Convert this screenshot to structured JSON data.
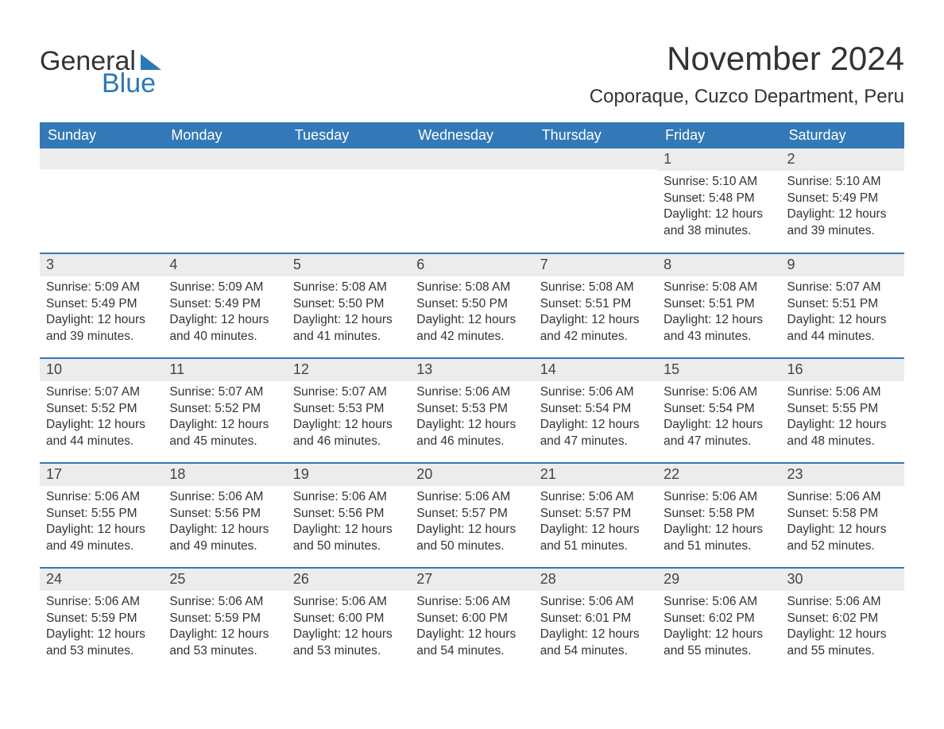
{
  "logo": {
    "word1": "General",
    "word2": "Blue"
  },
  "title": "November 2024",
  "location": "Coporaque, Cuzco Department, Peru",
  "colors": {
    "header_bg": "#3379b7",
    "header_text": "#ffffff",
    "row_border": "#3379b7",
    "daynum_bg": "#ececec",
    "body_text": "#333333",
    "logo_blue": "#2b78b8",
    "page_bg": "#ffffff"
  },
  "typography": {
    "title_fontsize": 42,
    "location_fontsize": 24,
    "dayhdr_fontsize": 18,
    "body_fontsize": 15.5
  },
  "day_headers": [
    "Sunday",
    "Monday",
    "Tuesday",
    "Wednesday",
    "Thursday",
    "Friday",
    "Saturday"
  ],
  "labels": {
    "sunrise": "Sunrise:",
    "sunset": "Sunset:",
    "daylight": "Daylight:"
  },
  "weeks": [
    [
      null,
      null,
      null,
      null,
      null,
      {
        "n": 1,
        "sunrise": "5:10 AM",
        "sunset": "5:48 PM",
        "daylight": "12 hours and 38 minutes."
      },
      {
        "n": 2,
        "sunrise": "5:10 AM",
        "sunset": "5:49 PM",
        "daylight": "12 hours and 39 minutes."
      }
    ],
    [
      {
        "n": 3,
        "sunrise": "5:09 AM",
        "sunset": "5:49 PM",
        "daylight": "12 hours and 39 minutes."
      },
      {
        "n": 4,
        "sunrise": "5:09 AM",
        "sunset": "5:49 PM",
        "daylight": "12 hours and 40 minutes."
      },
      {
        "n": 5,
        "sunrise": "5:08 AM",
        "sunset": "5:50 PM",
        "daylight": "12 hours and 41 minutes."
      },
      {
        "n": 6,
        "sunrise": "5:08 AM",
        "sunset": "5:50 PM",
        "daylight": "12 hours and 42 minutes."
      },
      {
        "n": 7,
        "sunrise": "5:08 AM",
        "sunset": "5:51 PM",
        "daylight": "12 hours and 42 minutes."
      },
      {
        "n": 8,
        "sunrise": "5:08 AM",
        "sunset": "5:51 PM",
        "daylight": "12 hours and 43 minutes."
      },
      {
        "n": 9,
        "sunrise": "5:07 AM",
        "sunset": "5:51 PM",
        "daylight": "12 hours and 44 minutes."
      }
    ],
    [
      {
        "n": 10,
        "sunrise": "5:07 AM",
        "sunset": "5:52 PM",
        "daylight": "12 hours and 44 minutes."
      },
      {
        "n": 11,
        "sunrise": "5:07 AM",
        "sunset": "5:52 PM",
        "daylight": "12 hours and 45 minutes."
      },
      {
        "n": 12,
        "sunrise": "5:07 AM",
        "sunset": "5:53 PM",
        "daylight": "12 hours and 46 minutes."
      },
      {
        "n": 13,
        "sunrise": "5:06 AM",
        "sunset": "5:53 PM",
        "daylight": "12 hours and 46 minutes."
      },
      {
        "n": 14,
        "sunrise": "5:06 AM",
        "sunset": "5:54 PM",
        "daylight": "12 hours and 47 minutes."
      },
      {
        "n": 15,
        "sunrise": "5:06 AM",
        "sunset": "5:54 PM",
        "daylight": "12 hours and 47 minutes."
      },
      {
        "n": 16,
        "sunrise": "5:06 AM",
        "sunset": "5:55 PM",
        "daylight": "12 hours and 48 minutes."
      }
    ],
    [
      {
        "n": 17,
        "sunrise": "5:06 AM",
        "sunset": "5:55 PM",
        "daylight": "12 hours and 49 minutes."
      },
      {
        "n": 18,
        "sunrise": "5:06 AM",
        "sunset": "5:56 PM",
        "daylight": "12 hours and 49 minutes."
      },
      {
        "n": 19,
        "sunrise": "5:06 AM",
        "sunset": "5:56 PM",
        "daylight": "12 hours and 50 minutes."
      },
      {
        "n": 20,
        "sunrise": "5:06 AM",
        "sunset": "5:57 PM",
        "daylight": "12 hours and 50 minutes."
      },
      {
        "n": 21,
        "sunrise": "5:06 AM",
        "sunset": "5:57 PM",
        "daylight": "12 hours and 51 minutes."
      },
      {
        "n": 22,
        "sunrise": "5:06 AM",
        "sunset": "5:58 PM",
        "daylight": "12 hours and 51 minutes."
      },
      {
        "n": 23,
        "sunrise": "5:06 AM",
        "sunset": "5:58 PM",
        "daylight": "12 hours and 52 minutes."
      }
    ],
    [
      {
        "n": 24,
        "sunrise": "5:06 AM",
        "sunset": "5:59 PM",
        "daylight": "12 hours and 53 minutes."
      },
      {
        "n": 25,
        "sunrise": "5:06 AM",
        "sunset": "5:59 PM",
        "daylight": "12 hours and 53 minutes."
      },
      {
        "n": 26,
        "sunrise": "5:06 AM",
        "sunset": "6:00 PM",
        "daylight": "12 hours and 53 minutes."
      },
      {
        "n": 27,
        "sunrise": "5:06 AM",
        "sunset": "6:00 PM",
        "daylight": "12 hours and 54 minutes."
      },
      {
        "n": 28,
        "sunrise": "5:06 AM",
        "sunset": "6:01 PM",
        "daylight": "12 hours and 54 minutes."
      },
      {
        "n": 29,
        "sunrise": "5:06 AM",
        "sunset": "6:02 PM",
        "daylight": "12 hours and 55 minutes."
      },
      {
        "n": 30,
        "sunrise": "5:06 AM",
        "sunset": "6:02 PM",
        "daylight": "12 hours and 55 minutes."
      }
    ]
  ]
}
